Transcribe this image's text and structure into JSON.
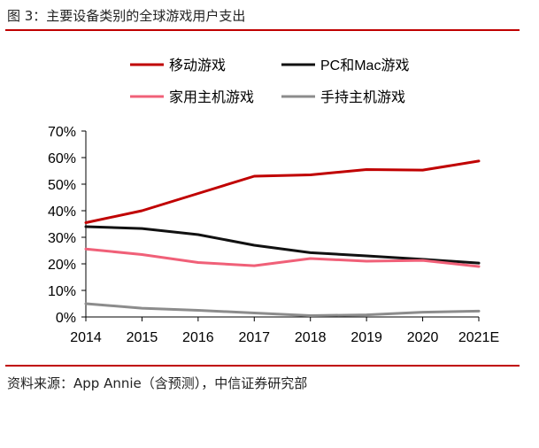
{
  "figure": {
    "title": "图 3：主要设备类别的全球游戏用户支出",
    "source": "资料来源：App Annie（含预测），中信证券研究部"
  },
  "chart_data": {
    "type": "line",
    "title": "",
    "xlabel": "",
    "ylabel": "",
    "categories": [
      "2014",
      "2015",
      "2016",
      "2017",
      "2018",
      "2019",
      "2020",
      "2021E"
    ],
    "y_ticks": [
      "0%",
      "10%",
      "20%",
      "30%",
      "40%",
      "50%",
      "60%",
      "70%"
    ],
    "ylim": [
      0,
      70
    ],
    "y_unit": "%",
    "grid": false,
    "legend_position": "top",
    "series": [
      {
        "name": "移动游戏",
        "color": "#c00000",
        "values": [
          35.5,
          40.0,
          46.5,
          53.0,
          53.5,
          55.5,
          55.3,
          58.7
        ]
      },
      {
        "name": "PC和Mac游戏",
        "color": "#111111",
        "values": [
          34.0,
          33.3,
          31.0,
          27.0,
          24.2,
          23.0,
          21.7,
          20.3
        ]
      },
      {
        "name": "家用主机游戏",
        "color": "#f06078",
        "values": [
          25.6,
          23.5,
          20.5,
          19.3,
          22.0,
          21.0,
          21.3,
          19.0
        ]
      },
      {
        "name": "手持主机游戏",
        "color": "#8c8c8c",
        "values": [
          5.0,
          3.3,
          2.5,
          1.5,
          0.5,
          0.8,
          1.8,
          2.2
        ]
      }
    ]
  }
}
